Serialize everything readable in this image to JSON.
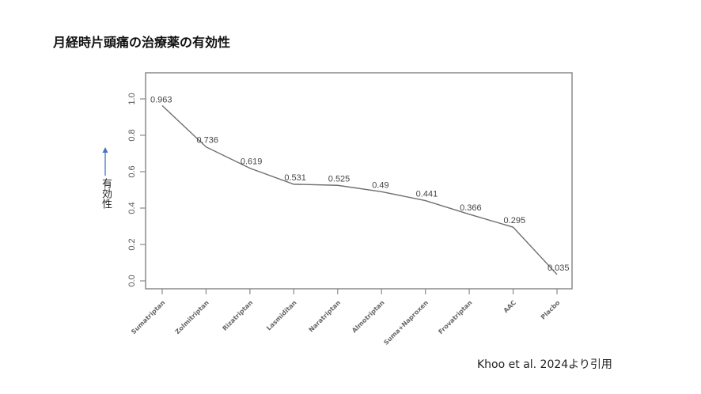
{
  "title": "月経時片頭痛の治療薬の有効性",
  "y_axis_label": "有効性",
  "citation": "Khoo et al. 2024より引用",
  "colors": {
    "line": "#6e6e6e",
    "frame": "#8a8a8a",
    "arrow": "#4472c4",
    "text": "#222222"
  },
  "chart_data": {
    "type": "line",
    "title": "月経時片頭痛の治療薬の有効性",
    "xlabel": "",
    "ylabel": "有効性",
    "ylim": [
      0.0,
      1.0
    ],
    "yticks": [
      "0.0",
      "0.2",
      "0.4",
      "0.6",
      "0.8",
      "1.0"
    ],
    "grid": false,
    "legend": null,
    "categories": [
      "Sumatriptan",
      "Zolmitriptan",
      "Rizatriptan",
      "Lasmiditan",
      "Naratriptan",
      "Almotriptan",
      "Suma+Naproxen",
      "Frovatriptan",
      "AAC",
      "Placbo"
    ],
    "values": [
      0.963,
      0.736,
      0.619,
      0.531,
      0.525,
      0.49,
      0.441,
      0.366,
      0.295,
      0.035
    ],
    "labels": [
      "0.963",
      "0.736",
      "0.619",
      "0.531",
      "0.525",
      "0.49",
      "0.441",
      "0.366",
      "0.295",
      "0.035"
    ]
  }
}
